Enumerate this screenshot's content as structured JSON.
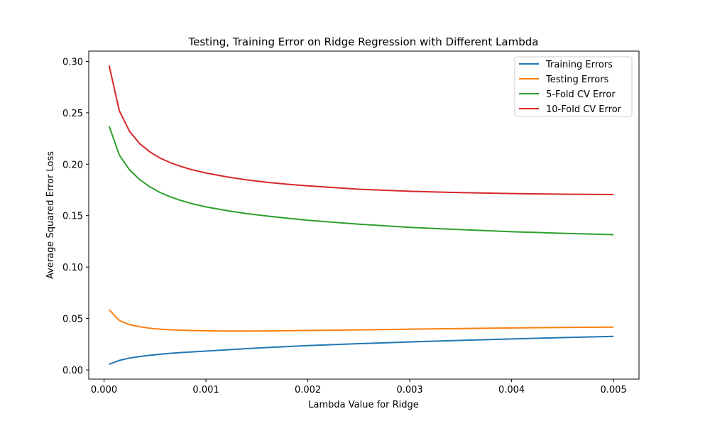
{
  "chart_data": {
    "type": "line",
    "title": "Testing, Training Error on Ridge Regression with Different Lambda",
    "xlabel": "Lambda Value for Ridge",
    "ylabel": "Average Squared Error Loss",
    "xlim": [
      -0.00015,
      0.00525
    ],
    "ylim": [
      -0.009,
      0.31
    ],
    "grid": false,
    "legend_position": "top-right",
    "xticks": [
      {
        "value": 0.0,
        "label": "0.000"
      },
      {
        "value": 0.001,
        "label": "0.001"
      },
      {
        "value": 0.002,
        "label": "0.002"
      },
      {
        "value": 0.003,
        "label": "0.003"
      },
      {
        "value": 0.004,
        "label": "0.004"
      },
      {
        "value": 0.005,
        "label": "0.005"
      }
    ],
    "yticks": [
      {
        "value": 0.0,
        "label": "0.00"
      },
      {
        "value": 0.05,
        "label": "0.05"
      },
      {
        "value": 0.1,
        "label": "0.10"
      },
      {
        "value": 0.15,
        "label": "0.15"
      },
      {
        "value": 0.2,
        "label": "0.20"
      },
      {
        "value": 0.25,
        "label": "0.25"
      },
      {
        "value": 0.3,
        "label": "0.30"
      }
    ],
    "x": [
      5e-05,
      0.00015,
      0.00025,
      0.00035,
      0.00045,
      0.00055,
      0.00065,
      0.00075,
      0.00085,
      0.001,
      0.0012,
      0.0014,
      0.0016,
      0.0018,
      0.002,
      0.0025,
      0.003,
      0.0035,
      0.004,
      0.0045,
      0.005
    ],
    "series": [
      {
        "name": "Training Errors",
        "color": "#1f77b4",
        "values": [
          0.0055,
          0.0092,
          0.0115,
          0.013,
          0.0142,
          0.0152,
          0.0161,
          0.0168,
          0.0174,
          0.0183,
          0.0195,
          0.0207,
          0.0217,
          0.0227,
          0.0236,
          0.0255,
          0.0272,
          0.0287,
          0.0301,
          0.0314,
          0.0326
        ]
      },
      {
        "name": "Testing Errors",
        "color": "#ff7f0e",
        "values": [
          0.0585,
          0.048,
          0.044,
          0.042,
          0.0405,
          0.0396,
          0.039,
          0.0386,
          0.0383,
          0.038,
          0.0378,
          0.0378,
          0.0379,
          0.0381,
          0.0383,
          0.0389,
          0.0396,
          0.0402,
          0.0408,
          0.0412,
          0.0416
        ]
      },
      {
        "name": "5-Fold CV Error",
        "color": "#2ca02c",
        "values": [
          0.237,
          0.209,
          0.1945,
          0.185,
          0.178,
          0.1725,
          0.1683,
          0.1649,
          0.162,
          0.1585,
          0.155,
          0.152,
          0.1496,
          0.1475,
          0.1455,
          0.1417,
          0.1386,
          0.1364,
          0.1344,
          0.1328,
          0.1315
        ]
      },
      {
        "name": "10-Fold CV Error",
        "color": "#d62728",
        "values": [
          0.296,
          0.252,
          0.232,
          0.22,
          0.212,
          0.206,
          0.2015,
          0.198,
          0.195,
          0.1915,
          0.1878,
          0.1848,
          0.1824,
          0.1805,
          0.179,
          0.1757,
          0.1737,
          0.1724,
          0.1715,
          0.1709,
          0.1705
        ]
      }
    ]
  }
}
